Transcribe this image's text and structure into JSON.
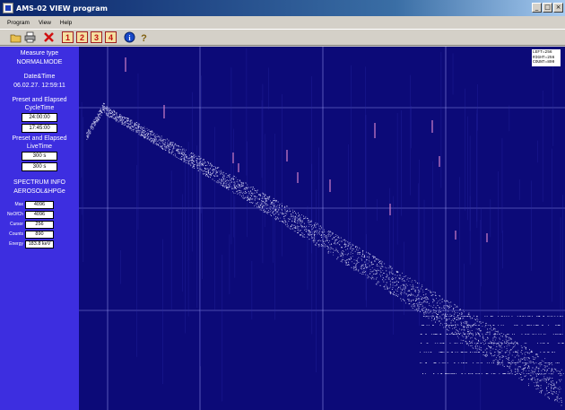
{
  "window": {
    "title": "AMS-02 VIEW program"
  },
  "menu": [
    "Program",
    "View",
    "Help"
  ],
  "toolbar_icons": [
    "open-icon",
    "print-icon",
    "delete-icon",
    "spectrum-1-icon",
    "spectrum-2-icon",
    "spectrum-3-icon",
    "spectrum-4-icon",
    "info-icon",
    "help-icon"
  ],
  "sidebar": {
    "measure_type_label": "Measure type",
    "measure_type_value": "NORMALMODE",
    "datetime_label": "Date&Time",
    "datetime_value": "06.02.27. 12:59:11",
    "cycle_label_1": "Preset and Elapsed",
    "cycle_label_2": "CycleTime",
    "cycle_preset": "24:00:00",
    "cycle_elapsed": "17:45:00",
    "live_label_1": "Preset and Elapsed",
    "live_label_2": "LiveTime",
    "live_preset": "300 s",
    "live_elapsed": "300 s",
    "spectrum_label": "SPECTRUM INFO",
    "spectrum_name": "AEROSOL&HPGe",
    "rows": [
      {
        "label": "Max",
        "value": "4096"
      },
      {
        "label": "NoOfCh",
        "value": "4096"
      },
      {
        "label": "Cursor",
        "value": "256"
      },
      {
        "label": "Counts",
        "value": "890"
      },
      {
        "label": "Energy",
        "value": "183.8 keV"
      }
    ]
  },
  "plot": {
    "info_lines": [
      "LEFT=256",
      "RIGHT=256",
      "COUNT=890"
    ],
    "background_color": "#0c0a78",
    "grid_color": "#a8a8ff",
    "point_color": "#e8e8ff"
  }
}
